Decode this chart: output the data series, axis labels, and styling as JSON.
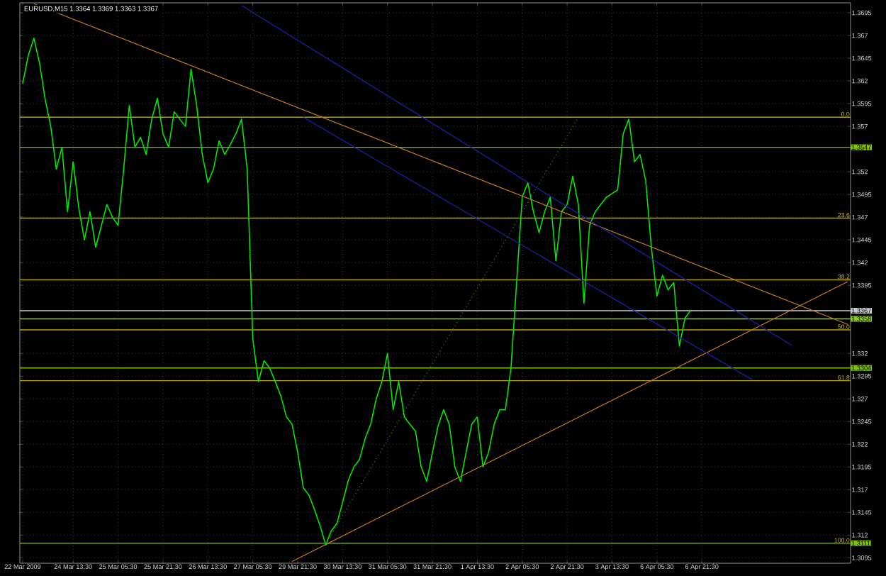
{
  "chart_data": {
    "type": "line",
    "title": "EURUSD,M15  1.3364 1.3369 1.3363 1.3367",
    "ylim": [
      1.3089,
      1.3706
    ],
    "categories": [
      "22 Mar 2009",
      null,
      null,
      null,
      null,
      null,
      null,
      null,
      null,
      "24 Mar 13:30",
      null,
      null,
      null,
      null,
      null,
      null,
      null,
      "25 Mar 05:30",
      null,
      null,
      null,
      null,
      null,
      null,
      null,
      "25 Mar 21:30",
      null,
      null,
      null,
      null,
      null,
      null,
      null,
      "26 Mar 13:30",
      null,
      null,
      null,
      null,
      null,
      null,
      null,
      "27 Mar 05:30",
      null,
      null,
      null,
      null,
      null,
      null,
      null,
      "29 Mar 21:30",
      null,
      null,
      null,
      null,
      null,
      null,
      null,
      "30 Mar 13:30",
      null,
      null,
      null,
      null,
      null,
      null,
      null,
      "31 Mar 05:30",
      null,
      null,
      null,
      null,
      null,
      null,
      null,
      "31 Mar 21:30",
      null,
      null,
      null,
      null,
      null,
      null,
      null,
      "1 Apr 13:30",
      null,
      null,
      null,
      null,
      null,
      null,
      null,
      "2 Apr 05:30",
      null,
      null,
      null,
      null,
      null,
      null,
      null,
      "2 Apr 21:30",
      null,
      null,
      null,
      null,
      null,
      null,
      null,
      "3 Apr 13:30",
      null,
      null,
      null,
      null,
      null,
      null,
      null,
      "6 Apr 05:30",
      null,
      null,
      null,
      null,
      null,
      null,
      null,
      "6 Apr 21:30",
      null,
      null,
      null,
      null,
      null,
      null,
      null,
      null,
      null,
      null,
      null,
      null,
      null,
      null,
      null,
      null,
      null,
      null,
      null,
      null,
      null,
      null,
      null,
      null,
      null,
      null
    ],
    "yticks": [
      1.3095,
      1.312,
      1.3145,
      1.317,
      1.3195,
      1.322,
      1.3245,
      1.327,
      1.3295,
      1.332,
      1.3395,
      1.342,
      1.3445,
      1.347,
      1.3495,
      1.352,
      1.357,
      1.3595,
      1.362,
      1.3645,
      1.367,
      1.3695
    ],
    "grid": true,
    "series": [
      {
        "color": "#00e600",
        "values": [
          1.3617,
          1.3648,
          1.3667,
          1.364,
          1.36,
          1.357,
          1.3523,
          1.3547,
          1.3476,
          1.3531,
          1.348,
          1.3445,
          1.3476,
          1.3437,
          1.346,
          1.3484,
          1.347,
          1.3461,
          1.3523,
          1.3593,
          1.3547,
          1.3558,
          1.3539,
          1.3578,
          1.3601,
          1.3562,
          1.3547,
          1.3586,
          1.3578,
          1.357,
          1.3633,
          1.3593,
          1.3539,
          1.3508,
          1.3523,
          1.3554,
          1.3539,
          1.355,
          1.3562,
          1.3578,
          1.3523,
          1.3336,
          1.3289,
          1.3312,
          1.3304,
          1.3289,
          1.3273,
          1.325,
          1.3242,
          1.3211,
          1.3172,
          1.3164,
          1.3148,
          1.313,
          1.3109,
          1.3125,
          1.3133,
          1.3156,
          1.318,
          1.3195,
          1.3203,
          1.3226,
          1.3242,
          1.327,
          1.3289,
          1.332,
          1.3258,
          1.3289,
          1.325,
          1.3242,
          1.3234,
          1.3195,
          1.3179,
          1.3211,
          1.324,
          1.3258,
          1.3242,
          1.3195,
          1.3179,
          1.3211,
          1.3242,
          1.325,
          1.3195,
          1.3211,
          1.3242,
          1.3258,
          1.3258,
          1.3304,
          1.3398,
          1.3492,
          1.3508,
          1.3476,
          1.3453,
          1.3476,
          1.3492,
          1.3422,
          1.3476,
          1.3484,
          1.3515,
          1.3484,
          1.3375,
          1.3461,
          1.3476,
          1.3484,
          1.3492,
          1.3496,
          1.35,
          1.3562,
          1.3578,
          1.3531,
          1.3539,
          1.351,
          1.3437,
          1.3383,
          1.3406,
          1.339,
          1.3398,
          1.3328,
          1.3359,
          1.3367,
          null,
          null,
          null,
          null,
          null,
          null,
          null,
          null,
          null,
          null,
          null,
          null,
          null,
          null,
          null,
          null,
          null,
          null,
          null,
          null,
          null,
          null,
          null,
          null,
          null,
          null,
          null,
          null
        ]
      },
      {
        "color": "#c8801e",
        "values": [
          null,
          null,
          1.3705,
          null,
          null,
          null,
          null,
          null,
          null,
          null,
          null,
          null,
          null,
          null,
          null,
          null,
          null,
          null,
          null,
          null,
          null,
          null,
          null,
          null,
          null,
          null,
          null,
          null,
          null,
          null,
          null,
          null,
          null,
          null,
          null,
          null,
          null,
          null,
          null,
          null,
          null,
          null,
          null,
          null,
          null,
          null,
          null,
          null,
          null,
          null,
          null,
          null,
          null,
          null,
          null,
          null,
          null,
          null,
          null,
          null,
          null,
          null,
          null,
          null,
          null,
          null,
          null,
          null,
          null,
          null,
          null,
          null,
          null,
          null,
          null,
          null,
          null,
          null,
          null,
          null,
          null,
          null,
          null,
          null,
          null,
          null,
          null,
          null,
          null,
          null,
          null,
          null,
          null,
          null,
          null,
          null,
          null,
          null,
          null,
          null,
          null,
          null,
          null,
          null,
          null,
          null,
          null,
          null,
          null,
          null,
          null,
          null,
          null,
          null,
          null,
          null,
          null,
          null,
          null,
          null,
          null,
          null,
          null,
          null,
          null,
          null,
          null,
          null,
          null,
          null,
          null,
          null,
          null,
          null,
          null,
          null,
          null,
          null,
          null,
          null,
          null,
          null,
          null,
          null,
          null,
          null,
          null,
          1.3352
        ]
      },
      {
        "color": "#c8801e",
        "values": [
          null,
          null,
          null,
          null,
          null,
          null,
          null,
          null,
          null,
          null,
          null,
          null,
          null,
          null,
          null,
          null,
          null,
          null,
          null,
          null,
          null,
          null,
          null,
          null,
          null,
          null,
          null,
          null,
          null,
          null,
          null,
          null,
          null,
          null,
          null,
          null,
          null,
          null,
          null,
          null,
          null,
          null,
          null,
          null,
          null,
          null,
          null,
          null,
          1.3091,
          null,
          null,
          null,
          null,
          null,
          null,
          null,
          null,
          null,
          null,
          null,
          null,
          null,
          null,
          null,
          null,
          null,
          null,
          null,
          null,
          null,
          null,
          null,
          null,
          null,
          null,
          null,
          null,
          null,
          null,
          null,
          null,
          null,
          null,
          null,
          null,
          null,
          null,
          null,
          null,
          null,
          null,
          null,
          null,
          null,
          null,
          null,
          null,
          null,
          null,
          null,
          null,
          null,
          null,
          null,
          null,
          null,
          null,
          null,
          null,
          null,
          null,
          null,
          null,
          null,
          null,
          null,
          null,
          null,
          null,
          null,
          null,
          null,
          null,
          null,
          null,
          null,
          null,
          null,
          null,
          null,
          null,
          null,
          null,
          null,
          null,
          null,
          null,
          null,
          null,
          null,
          null,
          null,
          null,
          null,
          null,
          null,
          null,
          1.3399
        ]
      },
      {
        "color": "#2020a8",
        "values": [
          null,
          null,
          null,
          null,
          null,
          null,
          null,
          null,
          null,
          null,
          null,
          null,
          null,
          null,
          null,
          null,
          null,
          null,
          null,
          null,
          null,
          null,
          null,
          null,
          null,
          null,
          null,
          null,
          null,
          null,
          null,
          null,
          null,
          null,
          null,
          null,
          null,
          null,
          null,
          1.3703,
          null,
          null,
          null,
          null,
          null,
          null,
          null,
          null,
          null,
          null,
          null,
          null,
          null,
          null,
          null,
          null,
          null,
          null,
          null,
          null,
          null,
          null,
          null,
          null,
          null,
          null,
          null,
          null,
          null,
          null,
          null,
          null,
          null,
          null,
          null,
          null,
          null,
          null,
          null,
          null,
          null,
          null,
          null,
          null,
          null,
          null,
          null,
          null,
          null,
          null,
          null,
          null,
          null,
          null,
          null,
          null,
          null,
          null,
          null,
          null,
          null,
          null,
          null,
          null,
          null,
          null,
          null,
          null,
          null,
          null,
          null,
          null,
          null,
          null,
          null,
          null,
          null,
          null,
          null,
          null,
          null,
          null,
          null,
          null,
          null,
          null,
          null,
          null,
          null,
          null,
          null,
          null,
          null,
          null,
          null,
          null,
          null,
          1.3329,
          null,
          null,
          null,
          null,
          null,
          null,
          null,
          null,
          null,
          null
        ]
      },
      {
        "color": "#2020a8",
        "values": [
          null,
          null,
          null,
          null,
          null,
          null,
          null,
          null,
          null,
          null,
          null,
          null,
          null,
          null,
          null,
          null,
          null,
          null,
          null,
          null,
          null,
          null,
          null,
          null,
          null,
          null,
          null,
          null,
          null,
          null,
          null,
          null,
          null,
          null,
          null,
          null,
          null,
          null,
          null,
          null,
          null,
          null,
          null,
          null,
          null,
          null,
          null,
          null,
          null,
          null,
          1.358,
          null,
          null,
          null,
          null,
          null,
          null,
          null,
          null,
          null,
          null,
          null,
          null,
          null,
          null,
          null,
          null,
          null,
          null,
          null,
          null,
          null,
          null,
          null,
          null,
          null,
          null,
          null,
          null,
          null,
          null,
          null,
          null,
          null,
          null,
          null,
          null,
          null,
          null,
          null,
          null,
          null,
          null,
          null,
          null,
          null,
          null,
          null,
          null,
          null,
          null,
          null,
          null,
          null,
          null,
          null,
          null,
          null,
          null,
          null,
          null,
          null,
          null,
          null,
          null,
          null,
          null,
          null,
          null,
          null,
          null,
          null,
          null,
          null,
          null,
          null,
          null,
          null,
          null,
          null,
          1.3291,
          null,
          null,
          null,
          null,
          null,
          null,
          null,
          null,
          null,
          null,
          null,
          null,
          null,
          null,
          null,
          null,
          null
        ]
      },
      {
        "color": "#3c8c00",
        "line_style": "dotted",
        "values": [
          null,
          null,
          null,
          null,
          null,
          null,
          null,
          null,
          null,
          null,
          null,
          null,
          null,
          null,
          null,
          null,
          null,
          null,
          null,
          null,
          null,
          null,
          null,
          null,
          null,
          null,
          null,
          null,
          null,
          null,
          null,
          null,
          null,
          null,
          null,
          null,
          null,
          null,
          null,
          null,
          null,
          null,
          null,
          null,
          null,
          null,
          null,
          null,
          null,
          null,
          null,
          null,
          null,
          null,
          1.311,
          null,
          null,
          null,
          null,
          null,
          null,
          null,
          null,
          null,
          null,
          null,
          null,
          null,
          null,
          null,
          null,
          null,
          null,
          null,
          null,
          null,
          null,
          null,
          null,
          null,
          null,
          null,
          null,
          null,
          null,
          null,
          null,
          null,
          null,
          null,
          null,
          null,
          null,
          null,
          null,
          null,
          null,
          null,
          null,
          1.358,
          null,
          null,
          null,
          null,
          null,
          null,
          null,
          null,
          null,
          null,
          null,
          null,
          null,
          null,
          null,
          null,
          null,
          null,
          null,
          null,
          null,
          null,
          null,
          null,
          null,
          null,
          null,
          null,
          null,
          null,
          null,
          null,
          null,
          null,
          null,
          null,
          null,
          null,
          null,
          null,
          null,
          null,
          null,
          null,
          null,
          null,
          null,
          null
        ]
      }
    ],
    "ref_lines": [
      {
        "axis": "y",
        "value": 1.358,
        "color": "#b4a000"
      },
      {
        "axis": "y",
        "value": 1.3469,
        "color": "#b4a000"
      },
      {
        "axis": "y",
        "value": 1.3401,
        "color": "#b4a000"
      },
      {
        "axis": "y",
        "value": 1.3346,
        "color": "#b4a000"
      },
      {
        "axis": "y",
        "value": 1.329,
        "color": "#b4a000"
      },
      {
        "axis": "y",
        "value": 1.3547,
        "color": "#7fc400",
        "label": "1.3547"
      },
      {
        "axis": "y",
        "value": 1.3367,
        "color": "#c8ccd0",
        "label": "1.3367"
      },
      {
        "axis": "y",
        "value": 1.3358,
        "color": "#8ccc20",
        "label": "1.3358"
      },
      {
        "axis": "y",
        "value": 1.3304,
        "color": "#7fc400",
        "label": "1.3304"
      },
      {
        "axis": "y",
        "value": 1.3111,
        "color": "#7fc400",
        "label": "1.3111"
      }
    ],
    "annotations": [
      {
        "text": "0.0",
        "y": 1.358
      },
      {
        "text": "23.6",
        "y": 1.3469
      },
      {
        "text": "38.2",
        "y": 1.3401
      },
      {
        "text": "50.0",
        "y": 1.3346
      },
      {
        "text": "61.8",
        "y": 1.329
      },
      {
        "text": "100.0",
        "y": 1.3111
      }
    ]
  }
}
